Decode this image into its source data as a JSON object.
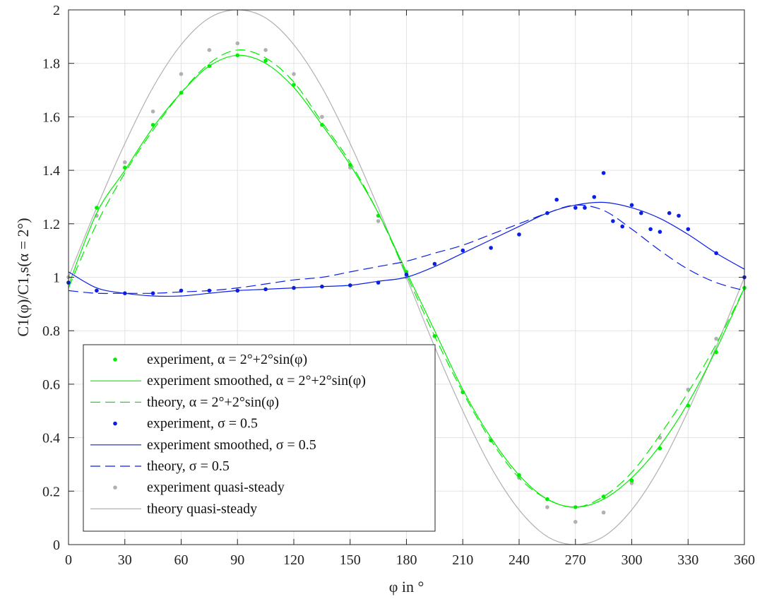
{
  "chart_data": {
    "type": "line",
    "xlabel": "φ in °",
    "ylabel": "C1(φ)/C1,s(α = 2°)",
    "xlim": [
      0,
      360
    ],
    "ylim": [
      0,
      2
    ],
    "xticks": [
      0,
      30,
      60,
      90,
      120,
      150,
      180,
      210,
      240,
      270,
      300,
      330,
      360
    ],
    "yticks": [
      0,
      0.2,
      0.4,
      0.6,
      0.8,
      1,
      1.2,
      1.4,
      1.6,
      1.8,
      2
    ],
    "grid": true,
    "legend_position": "bottom-left",
    "series": [
      {
        "name": "experiment, α = 2°+2°sin(φ)",
        "style": "dots",
        "color": "#00ee00",
        "x": [
          0,
          15,
          30,
          45,
          60,
          75,
          90,
          105,
          120,
          135,
          150,
          165,
          180,
          195,
          210,
          225,
          240,
          255,
          270,
          285,
          300,
          315,
          330,
          345,
          360
        ],
        "y": [
          0.98,
          1.26,
          1.41,
          1.57,
          1.69,
          1.79,
          1.83,
          1.81,
          1.72,
          1.57,
          1.42,
          1.23,
          1.02,
          0.78,
          0.57,
          0.39,
          0.26,
          0.17,
          0.14,
          0.18,
          0.24,
          0.36,
          0.52,
          0.72,
          0.96
        ]
      },
      {
        "name": "experiment smoothed, α = 2°+2°sin(φ)",
        "style": "solid",
        "color": "#00ee00",
        "x": [
          0,
          15,
          30,
          45,
          60,
          75,
          90,
          105,
          120,
          135,
          150,
          165,
          180,
          195,
          210,
          225,
          240,
          255,
          270,
          285,
          300,
          315,
          330,
          345,
          360
        ],
        "y": [
          0.97,
          1.24,
          1.4,
          1.56,
          1.69,
          1.79,
          1.83,
          1.8,
          1.71,
          1.57,
          1.42,
          1.24,
          1.02,
          0.8,
          0.58,
          0.4,
          0.26,
          0.17,
          0.14,
          0.17,
          0.25,
          0.37,
          0.53,
          0.73,
          0.96
        ]
      },
      {
        "name": "theory, α = 2°+2°sin(φ)",
        "style": "dashed",
        "color": "#00ee00",
        "x": [
          0,
          15,
          30,
          45,
          60,
          75,
          90,
          105,
          120,
          135,
          150,
          165,
          180,
          195,
          210,
          225,
          240,
          255,
          270,
          285,
          300,
          315,
          330,
          345,
          360
        ],
        "y": [
          0.96,
          1.2,
          1.39,
          1.55,
          1.69,
          1.8,
          1.85,
          1.82,
          1.73,
          1.58,
          1.43,
          1.24,
          1.01,
          0.78,
          0.57,
          0.39,
          0.25,
          0.17,
          0.14,
          0.18,
          0.27,
          0.41,
          0.57,
          0.75,
          0.96
        ]
      },
      {
        "name": "experiment, σ = 0.5",
        "style": "dots",
        "color": "#0a1ee6",
        "x": [
          0,
          15,
          30,
          45,
          60,
          75,
          90,
          105,
          120,
          135,
          150,
          165,
          180,
          195,
          210,
          225,
          240,
          255,
          260,
          270,
          275,
          280,
          285,
          290,
          295,
          300,
          305,
          310,
          315,
          320,
          325,
          330,
          345,
          360
        ],
        "y": [
          0.98,
          0.95,
          0.94,
          0.94,
          0.95,
          0.95,
          0.95,
          0.955,
          0.96,
          0.965,
          0.97,
          0.98,
          1.01,
          1.05,
          1.1,
          1.11,
          1.16,
          1.24,
          1.29,
          1.26,
          1.26,
          1.3,
          1.39,
          1.21,
          1.19,
          1.27,
          1.24,
          1.18,
          1.17,
          1.24,
          1.23,
          1.18,
          1.09,
          1.0
        ]
      },
      {
        "name": "experiment smoothed, σ = 0.5",
        "style": "solid",
        "color": "#0a1ee6",
        "x": [
          0,
          15,
          30,
          45,
          60,
          75,
          90,
          105,
          120,
          135,
          150,
          165,
          180,
          195,
          210,
          225,
          240,
          255,
          270,
          285,
          300,
          315,
          330,
          345,
          360
        ],
        "y": [
          1.02,
          0.96,
          0.94,
          0.93,
          0.93,
          0.94,
          0.95,
          0.955,
          0.96,
          0.965,
          0.97,
          0.985,
          1.0,
          1.04,
          1.09,
          1.14,
          1.19,
          1.24,
          1.27,
          1.28,
          1.26,
          1.22,
          1.16,
          1.09,
          1.03
        ]
      },
      {
        "name": "theory, σ = 0.5",
        "style": "dashed",
        "color": "#0a1ee6",
        "x": [
          0,
          15,
          30,
          45,
          60,
          75,
          90,
          105,
          120,
          135,
          150,
          165,
          180,
          195,
          210,
          225,
          240,
          255,
          270,
          285,
          300,
          315,
          330,
          345,
          360
        ],
        "y": [
          0.95,
          0.94,
          0.94,
          0.94,
          0.945,
          0.95,
          0.96,
          0.975,
          0.99,
          1.0,
          1.02,
          1.04,
          1.06,
          1.09,
          1.12,
          1.16,
          1.2,
          1.24,
          1.27,
          1.25,
          1.18,
          1.1,
          1.03,
          0.98,
          0.95
        ]
      },
      {
        "name": "experiment quasi-steady",
        "style": "dots",
        "color": "#b0b0b0",
        "x": [
          0,
          15,
          30,
          45,
          60,
          75,
          90,
          105,
          120,
          135,
          150,
          165,
          180,
          195,
          210,
          225,
          240,
          255,
          270,
          285,
          300,
          315,
          330,
          345,
          360
        ],
        "y": [
          1.0,
          1.23,
          1.43,
          1.62,
          1.76,
          1.85,
          1.875,
          1.85,
          1.76,
          1.6,
          1.41,
          1.21,
          1.0,
          0.78,
          0.57,
          0.39,
          0.25,
          0.14,
          0.085,
          0.12,
          0.23,
          0.4,
          0.58,
          0.77,
          0.96
        ]
      },
      {
        "name": "theory quasi-steady",
        "style": "solid",
        "color": "#b0b0b0",
        "x": [
          0,
          15,
          30,
          45,
          60,
          75,
          90,
          105,
          120,
          135,
          150,
          165,
          180,
          195,
          210,
          225,
          240,
          255,
          270,
          285,
          300,
          315,
          330,
          345,
          360
        ],
        "y": [
          1.0,
          1.26,
          1.5,
          1.71,
          1.87,
          1.97,
          2.0,
          1.97,
          1.87,
          1.71,
          1.5,
          1.26,
          1.0,
          0.74,
          0.5,
          0.29,
          0.13,
          0.03,
          0.0,
          0.03,
          0.13,
          0.29,
          0.5,
          0.74,
          1.0
        ]
      }
    ]
  }
}
